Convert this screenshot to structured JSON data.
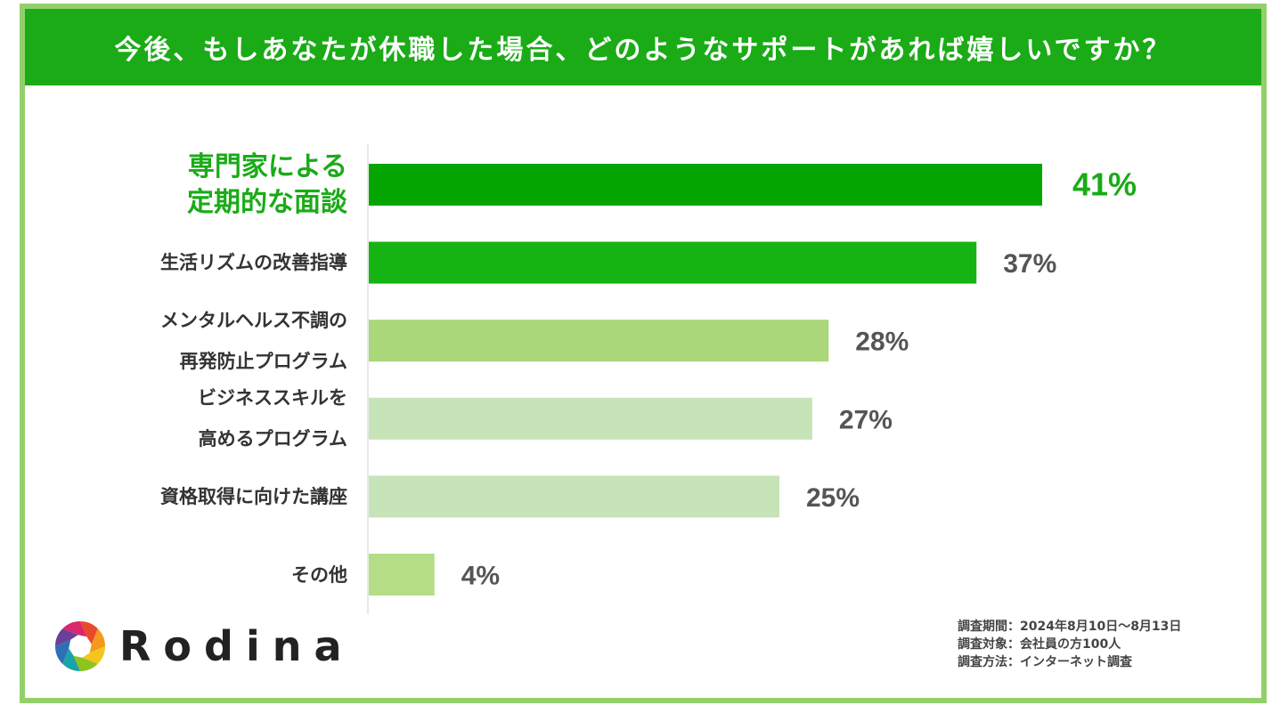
{
  "title": "今後、もしあなたが休職した場合、どのようなサポートがあれば嬉しいですか？",
  "chart_data": {
    "type": "bar",
    "orientation": "horizontal",
    "categories": [
      [
        "専門家による",
        "定期的な面談"
      ],
      [
        "生活リズムの改善指導"
      ],
      [
        "メンタルヘルス不調の",
        "再発防止プログラム"
      ],
      [
        "ビジネススキルを",
        "高めるプログラム"
      ],
      [
        "資格取得に向けた講座"
      ],
      [
        "その他"
      ]
    ],
    "values": [
      41,
      37,
      28,
      27,
      25,
      4
    ],
    "value_labels": [
      "41%",
      "37%",
      "28%",
      "27%",
      "25%",
      "4%"
    ],
    "colors": [
      "#04a500",
      "#16b412",
      "#a9d77a",
      "#c6e4b8",
      "#c6e4b8",
      "#b3de86"
    ],
    "value_colors": [
      "#1aab17",
      "#555555",
      "#555555",
      "#555555",
      "#555555",
      "#555555"
    ],
    "highlight_index": 0,
    "xlim": [
      0,
      41
    ]
  },
  "logo": {
    "text": "Rodina"
  },
  "survey_info": [
    "調査期間：2024年8月10日〜8月13日",
    "調査対象：会社員の方100人",
    "調査方法：インターネット調査"
  ],
  "colors": {
    "header": "#1aab17",
    "frame": "#93cf6a",
    "accent": "#1aab17"
  }
}
